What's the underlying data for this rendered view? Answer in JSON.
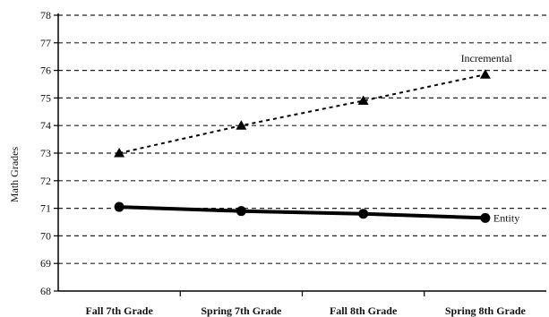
{
  "chart_data": {
    "type": "line",
    "title": "",
    "xlabel": "",
    "ylabel": "Math Grades",
    "ylim": [
      68,
      78
    ],
    "yticks": [
      68,
      69,
      70,
      71,
      72,
      73,
      74,
      75,
      76,
      77,
      78
    ],
    "grid": "horizontal-dashed",
    "categories": [
      "Fall 7th Grade",
      "Spring 7th Grade",
      "Fall 8th Grade",
      "Spring 8th Grade"
    ],
    "series": [
      {
        "name": "Incremental",
        "values": [
          73.0,
          74.0,
          74.9,
          75.85
        ],
        "marker": "triangle",
        "line": "dashed",
        "color": "#000000"
      },
      {
        "name": "Entity",
        "values": [
          71.05,
          70.9,
          70.8,
          70.65
        ],
        "marker": "circle",
        "line": "solid-thick",
        "color": "#000000"
      }
    ]
  }
}
